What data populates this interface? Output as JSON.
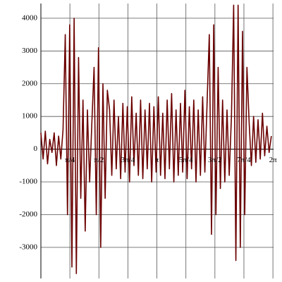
{
  "chart_data": {
    "type": "line",
    "x": [
      0,
      0.06,
      0.12,
      0.18,
      0.24,
      0.3,
      0.36,
      0.42,
      0.48,
      0.54,
      0.6,
      0.66,
      0.72,
      0.78,
      0.84,
      0.9,
      0.96,
      1.02,
      1.08,
      1.14,
      1.2,
      1.26,
      1.32,
      1.38,
      1.44,
      1.5,
      1.56,
      1.62,
      1.68,
      1.74,
      1.8,
      1.86,
      1.92,
      1.98,
      2.04,
      2.1,
      2.16,
      2.22,
      2.28,
      2.34,
      2.4,
      2.46,
      2.52,
      2.58,
      2.64,
      2.7,
      2.76,
      2.82,
      2.88,
      2.94,
      3.0,
      3.06,
      3.12,
      3.18,
      3.24,
      3.3,
      3.36,
      3.42,
      3.48,
      3.54,
      3.6,
      3.66,
      3.72,
      3.78,
      3.84,
      3.9,
      3.96,
      4.02,
      4.08,
      4.14,
      4.2,
      4.26,
      4.32,
      4.38,
      4.44,
      4.5,
      4.56,
      4.62,
      4.68,
      4.74,
      4.8,
      4.86,
      4.92,
      4.98,
      5.04,
      5.1,
      5.16,
      5.22,
      5.28,
      5.34,
      5.4,
      5.46,
      5.52,
      5.58,
      5.64,
      5.7,
      5.76,
      5.82,
      5.88,
      5.94,
      6.0,
      6.06,
      6.12,
      6.18,
      6.24
    ],
    "series": [
      {
        "color": "#6b0000",
        "values": [
          500,
          -300,
          550,
          -450,
          300,
          -100,
          500,
          -500,
          400,
          -300,
          600,
          3500,
          -2000,
          3800,
          -3600,
          4000,
          -3800,
          2800,
          -1500,
          1500,
          -2500,
          1200,
          -1000,
          800,
          2500,
          -2000,
          3100,
          -3000,
          2000,
          -1500,
          1800,
          1200,
          -800,
          1500,
          -600,
          1000,
          -900,
          1400,
          -700,
          1300,
          -1000,
          1600,
          -500,
          1100,
          -800,
          1500,
          -900,
          1200,
          -600,
          1400,
          -1000,
          1300,
          -700,
          1600,
          -800,
          1100,
          -900,
          1500,
          -600,
          1700,
          -1000,
          1200,
          -800,
          1400,
          -700,
          1800,
          -900,
          1300,
          -600,
          1500,
          -1000,
          1200,
          -800,
          1600,
          -700,
          1400,
          3500,
          -2600,
          3800,
          -2000,
          2500,
          -1200,
          1500,
          -1000,
          1200,
          -800,
          1000,
          4400,
          -3400,
          4400,
          -3000,
          3600,
          -2000,
          2500,
          800,
          -500,
          1000,
          -400,
          900,
          -300,
          1100,
          -200,
          700,
          -100,
          400
        ]
      }
    ],
    "xlim": [
      0,
      6.3
    ],
    "ylim": [
      -3950,
      4450
    ],
    "xticks": [
      {
        "value": 0.7854,
        "label": "π/4"
      },
      {
        "value": 1.5708,
        "label": "π/2"
      },
      {
        "value": 2.3562,
        "label": "3π/4"
      },
      {
        "value": 3.1416,
        "label": "π"
      },
      {
        "value": 3.927,
        "label": "5π/4"
      },
      {
        "value": 4.7124,
        "label": "3π/2"
      },
      {
        "value": 5.4978,
        "label": "7π/4"
      },
      {
        "value": 6.2832,
        "label": "2π"
      }
    ],
    "yticks": [
      -3000,
      -2000,
      -1000,
      0,
      1000,
      2000,
      3000,
      4000
    ],
    "grid": true
  }
}
